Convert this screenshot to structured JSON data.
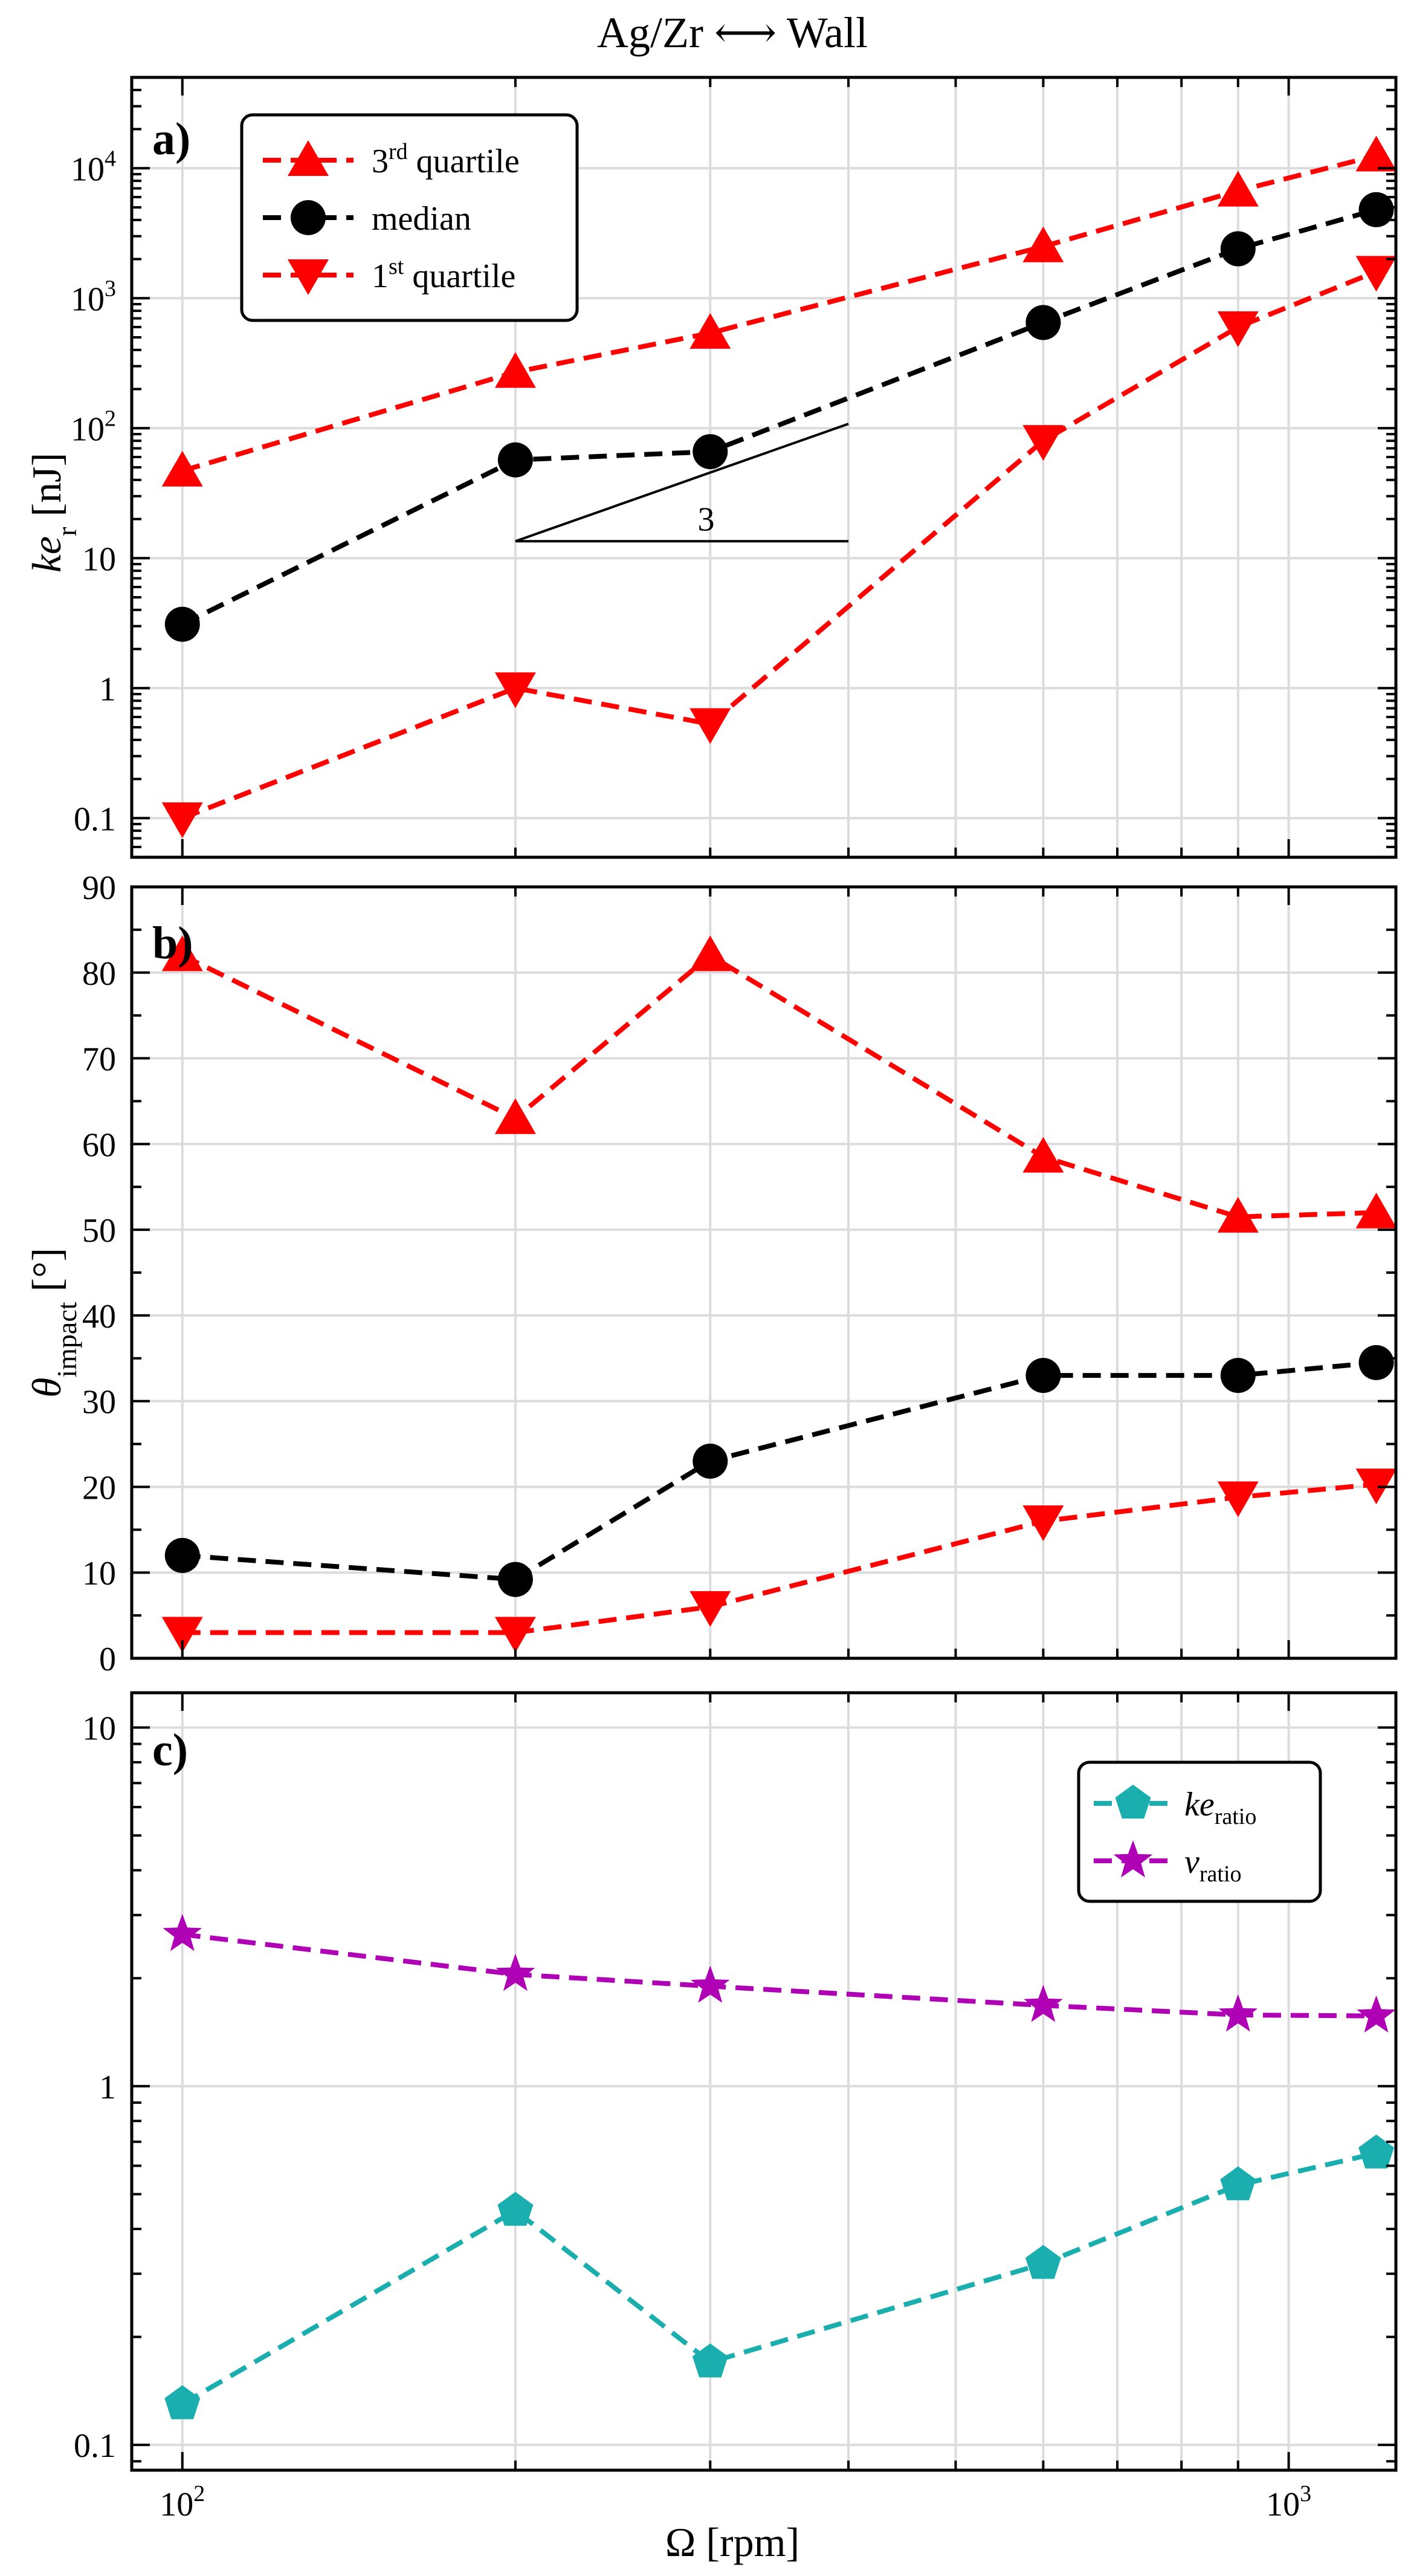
{
  "title": "Ag/Zr ⟷ Wall",
  "x_axis": {
    "label": "Ω [rpm]",
    "scale": "log",
    "range": [
      90,
      1250
    ],
    "tick_labels": [
      {
        "value": 100,
        "base": "10",
        "exp": "2"
      },
      {
        "value": 1000,
        "base": "10",
        "exp": "3"
      }
    ],
    "minor_gridlines": [
      100,
      200,
      300,
      400,
      500,
      600,
      700,
      800,
      900,
      1000
    ]
  },
  "chart_data": [
    {
      "type": "line",
      "panel_label": "a)",
      "ylabel": {
        "italic": "ke",
        "sub": "r",
        "unit": " [nJ]"
      },
      "yscale": "log",
      "ylim": [
        0.05,
        50000
      ],
      "y_tick_labels": [
        {
          "value": 0.1,
          "text": "0.1"
        },
        {
          "value": 1,
          "text": "1"
        },
        {
          "value": 10,
          "text": "10"
        },
        {
          "value": 100,
          "base": "10",
          "exp": "2"
        },
        {
          "value": 1000,
          "base": "10",
          "exp": "3"
        },
        {
          "value": 10000,
          "base": "10",
          "exp": "4"
        }
      ],
      "x": [
        100,
        200,
        300,
        600,
        900,
        1200
      ],
      "series": [
        {
          "name": "3rd quartile",
          "legend_main": "3",
          "legend_sup": "rd",
          "legend_rest": " quartile",
          "marker": "triangle-up",
          "color": "#ff0000",
          "values": [
            47,
            270,
            540,
            2500,
            6700,
            12500
          ]
        },
        {
          "name": "median",
          "legend_main": "median",
          "legend_sup": "",
          "legend_rest": "",
          "marker": "circle",
          "color": "#000000",
          "values": [
            3.1,
            57,
            66,
            650,
            2400,
            4800
          ]
        },
        {
          "name": "1st quartile",
          "legend_main": "1",
          "legend_sup": "st",
          "legend_rest": " quartile",
          "marker": "triangle-down",
          "color": "#ff0000",
          "values": [
            0.1,
            1.0,
            0.53,
            80,
            600,
            1600
          ]
        }
      ],
      "slope_annotation": {
        "label": "3",
        "x_start": 200,
        "x_end": 400,
        "y_base": 13.5
      }
    },
    {
      "type": "line",
      "panel_label": "b)",
      "ylabel": {
        "italic": "θ",
        "sub": "impact",
        "unit": " [°]"
      },
      "yscale": "linear",
      "ylim": [
        0,
        90
      ],
      "y_tick_labels": [
        {
          "value": 0,
          "text": "0"
        },
        {
          "value": 10,
          "text": "10"
        },
        {
          "value": 20,
          "text": "20"
        },
        {
          "value": 30,
          "text": "30"
        },
        {
          "value": 40,
          "text": "40"
        },
        {
          "value": 50,
          "text": "50"
        },
        {
          "value": 60,
          "text": "60"
        },
        {
          "value": 70,
          "text": "70"
        },
        {
          "value": 80,
          "text": "80"
        },
        {
          "value": 90,
          "text": "90"
        }
      ],
      "x": [
        100,
        200,
        300,
        600,
        900,
        1200
      ],
      "series": [
        {
          "name": "3rd quartile",
          "marker": "triangle-up",
          "color": "#ff0000",
          "values": [
            82,
            63,
            82,
            58.5,
            51.5,
            52
          ]
        },
        {
          "name": "median",
          "marker": "circle",
          "color": "#000000",
          "values": [
            12,
            9.2,
            23,
            33,
            33,
            34.5
          ]
        },
        {
          "name": "1st quartile",
          "marker": "triangle-down",
          "color": "#ff0000",
          "values": [
            3,
            3,
            6,
            16,
            18.8,
            20.3
          ]
        }
      ]
    },
    {
      "type": "line",
      "panel_label": "c)",
      "ylabel": null,
      "yscale": "log",
      "ylim": [
        0.085,
        12.5
      ],
      "y_tick_labels": [
        {
          "value": 0.1,
          "text": "0.1"
        },
        {
          "value": 1,
          "text": "1"
        },
        {
          "value": 10,
          "text": "10"
        }
      ],
      "x": [
        100,
        200,
        300,
        600,
        900,
        1200
      ],
      "series": [
        {
          "name": "ke_ratio",
          "legend_main": "ke",
          "legend_sub": "ratio",
          "marker": "pentagon",
          "color": "#1aaeae",
          "values": [
            0.13,
            0.45,
            0.17,
            0.32,
            0.53,
            0.65
          ]
        },
        {
          "name": "v_ratio",
          "legend_main": "v",
          "legend_sub": "ratio",
          "marker": "star",
          "color": "#b000b5",
          "values": [
            2.65,
            2.05,
            1.9,
            1.68,
            1.58,
            1.57
          ]
        }
      ]
    }
  ]
}
